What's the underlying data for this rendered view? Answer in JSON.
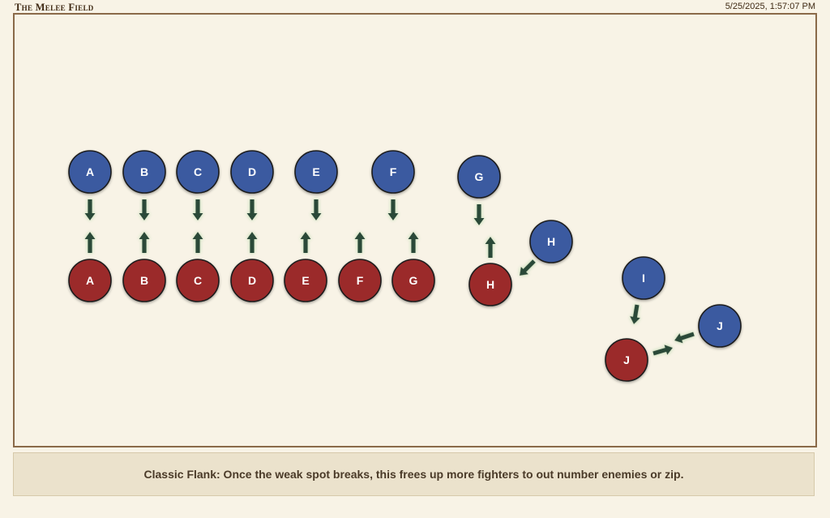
{
  "header": {
    "title": "The Melee Field",
    "timestamp": "5/25/2025, 1:57:07 PM"
  },
  "colors": {
    "blue_team": "#3a5aa0",
    "red_team": "#9b2a2c",
    "arrow": "#2c4a38",
    "arrow_glow": "#d4e6c8"
  },
  "diagram": {
    "blue_units": [
      "A",
      "B",
      "C",
      "D",
      "E",
      "F",
      "G",
      "H",
      "I",
      "J"
    ],
    "red_units": [
      "A",
      "B",
      "C",
      "D",
      "E",
      "F",
      "G",
      "H",
      "J"
    ]
  },
  "caption": "Classic Flank: Once the weak spot breaks, this frees up more fighters to out number enemies or zip."
}
